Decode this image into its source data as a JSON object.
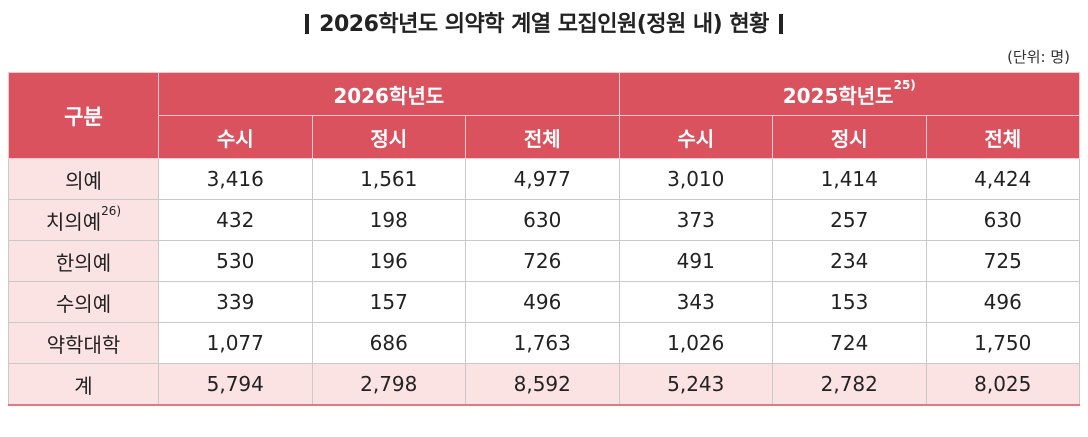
{
  "title": "2026학년도 의약학 계열 모집인원(정원 내) 현황",
  "unit": "(단위: 명)",
  "table": {
    "corner": "구분",
    "groups": [
      {
        "label": "2026학년도",
        "note": ""
      },
      {
        "label": "2025학년도",
        "note": "25)"
      }
    ],
    "subheaders": [
      "수시",
      "정시",
      "전체",
      "수시",
      "정시",
      "전체"
    ],
    "rows": [
      {
        "label": "의예",
        "note": "",
        "values": [
          "3,416",
          "1,561",
          "4,977",
          "3,010",
          "1,414",
          "4,424"
        ]
      },
      {
        "label": "치의예",
        "note": "26)",
        "values": [
          "432",
          "198",
          "630",
          "373",
          "257",
          "630"
        ]
      },
      {
        "label": "한의예",
        "note": "",
        "values": [
          "530",
          "196",
          "726",
          "491",
          "234",
          "725"
        ]
      },
      {
        "label": "수의예",
        "note": "",
        "values": [
          "339",
          "157",
          "496",
          "343",
          "153",
          "496"
        ]
      },
      {
        "label": "약학대학",
        "note": "",
        "values": [
          "1,077",
          "686",
          "1,763",
          "1,026",
          "724",
          "1,750"
        ]
      },
      {
        "label": "계",
        "note": "",
        "values": [
          "5,794",
          "2,798",
          "8,592",
          "5,243",
          "2,782",
          "8,025"
        ]
      }
    ]
  }
}
